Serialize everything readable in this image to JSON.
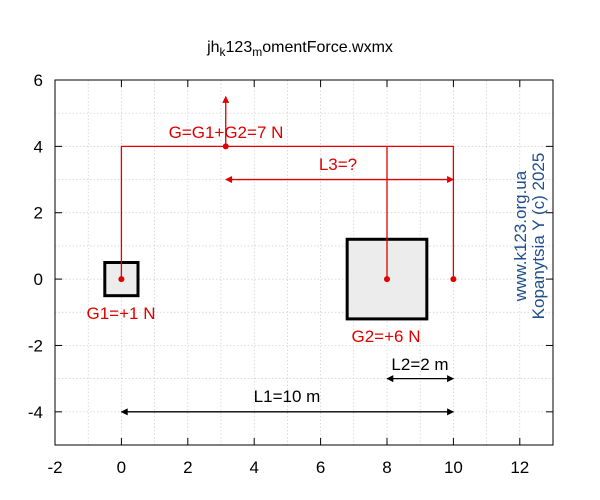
{
  "chart_data": {
    "type": "diagram",
    "title": "jhk123momentForce.wxmx",
    "title_parts": {
      "main": "jh",
      "sub1": "k",
      "mid": "123",
      "sub2": "m",
      "end": "omentForce.wxmx"
    },
    "xlim": [
      -2,
      13
    ],
    "ylim": [
      -5,
      6
    ],
    "xticks": [
      -2,
      0,
      2,
      4,
      6,
      8,
      10,
      12
    ],
    "yticks": [
      -4,
      -2,
      0,
      2,
      4,
      6
    ],
    "grid": true,
    "colors": {
      "force": "#e00000",
      "dimension": "#000000",
      "watermark": "#1f4e8c",
      "box_fill": "#ececec",
      "grid": "#cccccc"
    },
    "boxes": [
      {
        "name": "box-small",
        "x0": -0.5,
        "x1": 0.5,
        "y0": -0.5,
        "y1": 0.5
      },
      {
        "name": "box-large",
        "x0": 6.8,
        "x1": 9.2,
        "y0": -1.2,
        "y1": 1.2
      }
    ],
    "points": [
      {
        "name": "g1-point",
        "x": 0,
        "y": 0
      },
      {
        "name": "g2-point",
        "x": 8,
        "y": 0
      },
      {
        "name": "l1-end-point",
        "x": 10,
        "y": 0
      },
      {
        "name": "resultant-point",
        "x": 3.143,
        "y": 4
      }
    ],
    "force_lines": [
      {
        "name": "g1-line",
        "x": [
          0,
          0,
          10,
          10
        ],
        "y": [
          0,
          4,
          4,
          0
        ]
      },
      {
        "name": "g2-line",
        "x": [
          8,
          8
        ],
        "y": [
          0,
          4
        ]
      }
    ],
    "resultant": {
      "x": 3.143,
      "y0": 4,
      "y1": 5.5
    },
    "dimension_arrows": [
      {
        "name": "l3-arrow",
        "x0": 3.143,
        "x1": 10,
        "y": 3,
        "color": "force"
      },
      {
        "name": "l2-arrow",
        "x0": 8,
        "x1": 10,
        "y": -3,
        "color": "dimension"
      },
      {
        "name": "l1-arrow",
        "x0": 0,
        "x1": 10,
        "y": -4,
        "color": "dimension"
      }
    ],
    "labels": {
      "resultant": "G=G1+G2=7 N",
      "l3": "L3=?",
      "g1": "G1=+1 N",
      "g2": "G2=+6 N",
      "l2": "L2=2 m",
      "l1": "L1=10 m",
      "watermark_line1": "www.k123.org.ua",
      "watermark_line2": "Kopanytsia Y (c)  2025"
    },
    "values": {
      "G1": 1,
      "G2": 6,
      "G": 7,
      "L1": 10,
      "L2": 2
    }
  }
}
